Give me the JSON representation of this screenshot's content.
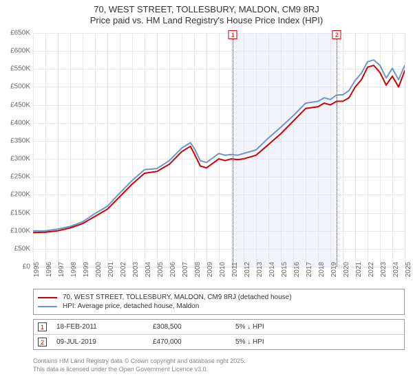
{
  "title": {
    "line1": "70, WEST STREET, TOLLESBURY, MALDON, CM9 8RJ",
    "line2": "Price paid vs. HM Land Registry's House Price Index (HPI)",
    "fontsize": 13,
    "color": "#333333"
  },
  "chart": {
    "type": "line",
    "background_color": "#ffffff",
    "grid_color": "#e7e7e7",
    "axis_label_color": "#666666",
    "axis_label_fontsize": 10,
    "x": {
      "min": 1995,
      "max": 2025,
      "ticks": [
        1995,
        1996,
        1997,
        1998,
        1999,
        2000,
        2001,
        2002,
        2003,
        2004,
        2005,
        2006,
        2007,
        2008,
        2009,
        2010,
        2011,
        2012,
        2013,
        2014,
        2015,
        2016,
        2017,
        2018,
        2019,
        2020,
        2021,
        2022,
        2023,
        2024,
        2025
      ]
    },
    "y": {
      "min": 0,
      "max": 650000,
      "tick_step": 50000,
      "prefix": "£",
      "suffix": "K",
      "divide": 1000
    },
    "highlight_band": {
      "from": 2011.13,
      "to": 2019.52,
      "color": "#f1f5fb"
    },
    "markers": [
      {
        "id": "1",
        "x": 2011.13,
        "line_color": "#cc0000"
      },
      {
        "id": "2",
        "x": 2019.52,
        "line_color": "#cc0000"
      }
    ],
    "series": [
      {
        "name": "70, WEST STREET, TOLLESBURY, MALDON, CM9 8RJ (detached house)",
        "color": "#cc0000",
        "width": 2,
        "points": [
          [
            1995,
            95000
          ],
          [
            1996,
            96000
          ],
          [
            1997,
            100000
          ],
          [
            1998,
            108000
          ],
          [
            1999,
            120000
          ],
          [
            2000,
            140000
          ],
          [
            2001,
            160000
          ],
          [
            2002,
            195000
          ],
          [
            2003,
            230000
          ],
          [
            2004,
            260000
          ],
          [
            2005,
            265000
          ],
          [
            2006,
            285000
          ],
          [
            2007,
            320000
          ],
          [
            2007.7,
            335000
          ],
          [
            2008,
            315000
          ],
          [
            2008.5,
            280000
          ],
          [
            2009,
            275000
          ],
          [
            2010,
            300000
          ],
          [
            2010.5,
            295000
          ],
          [
            2011,
            300000
          ],
          [
            2011.5,
            298000
          ],
          [
            2012,
            300000
          ],
          [
            2013,
            310000
          ],
          [
            2014,
            340000
          ],
          [
            2015,
            370000
          ],
          [
            2016,
            405000
          ],
          [
            2017,
            440000
          ],
          [
            2018,
            445000
          ],
          [
            2018.5,
            455000
          ],
          [
            2019,
            450000
          ],
          [
            2019.5,
            460000
          ],
          [
            2020,
            460000
          ],
          [
            2020.5,
            470000
          ],
          [
            2021,
            500000
          ],
          [
            2021.5,
            520000
          ],
          [
            2022,
            555000
          ],
          [
            2022.5,
            560000
          ],
          [
            2023,
            540000
          ],
          [
            2023.5,
            505000
          ],
          [
            2024,
            530000
          ],
          [
            2024.5,
            500000
          ],
          [
            2025,
            545000
          ]
        ]
      },
      {
        "name": "HPI: Average price, detached house, Maldon",
        "color": "#6f94c5",
        "width": 2,
        "points": [
          [
            1995,
            100000
          ],
          [
            1996,
            100000
          ],
          [
            1997,
            105000
          ],
          [
            1998,
            112000
          ],
          [
            1999,
            125000
          ],
          [
            2000,
            148000
          ],
          [
            2001,
            168000
          ],
          [
            2002,
            205000
          ],
          [
            2003,
            240000
          ],
          [
            2004,
            270000
          ],
          [
            2005,
            273000
          ],
          [
            2006,
            295000
          ],
          [
            2007,
            330000
          ],
          [
            2007.7,
            345000
          ],
          [
            2008,
            330000
          ],
          [
            2008.5,
            295000
          ],
          [
            2009,
            290000
          ],
          [
            2010,
            315000
          ],
          [
            2010.5,
            310000
          ],
          [
            2011,
            312000
          ],
          [
            2011.5,
            310000
          ],
          [
            2012,
            315000
          ],
          [
            2013,
            325000
          ],
          [
            2014,
            358000
          ],
          [
            2015,
            388000
          ],
          [
            2016,
            420000
          ],
          [
            2017,
            455000
          ],
          [
            2018,
            460000
          ],
          [
            2018.5,
            470000
          ],
          [
            2019,
            465000
          ],
          [
            2019.5,
            478000
          ],
          [
            2020,
            478000
          ],
          [
            2020.5,
            490000
          ],
          [
            2021,
            518000
          ],
          [
            2021.5,
            538000
          ],
          [
            2022,
            570000
          ],
          [
            2022.5,
            575000
          ],
          [
            2023,
            560000
          ],
          [
            2023.5,
            525000
          ],
          [
            2024,
            552000
          ],
          [
            2024.5,
            520000
          ],
          [
            2025,
            560000
          ]
        ]
      }
    ]
  },
  "legend": {
    "border_color": "#999999",
    "fontsize": 10,
    "items": [
      {
        "color": "#cc0000",
        "label": "70, WEST STREET, TOLLESBURY, MALDON, CM9 8RJ (detached house)"
      },
      {
        "color": "#6f94c5",
        "label": "HPI: Average price, detached house, Maldon"
      }
    ]
  },
  "events": {
    "border_color": "#999999",
    "fontsize": 10,
    "rows": [
      {
        "id": "1",
        "date": "18-FEB-2011",
        "price": "£308,500",
        "note": "5% ↓ HPI"
      },
      {
        "id": "2",
        "date": "09-JUL-2019",
        "price": "£470,000",
        "note": "5% ↓ HPI"
      }
    ]
  },
  "attribution": {
    "line1": "Contains HM Land Registry data © Crown copyright and database right 2025.",
    "line2": "This data is licensed under the Open Government Licence v3.0.",
    "fontsize": 9,
    "color": "#888888"
  }
}
